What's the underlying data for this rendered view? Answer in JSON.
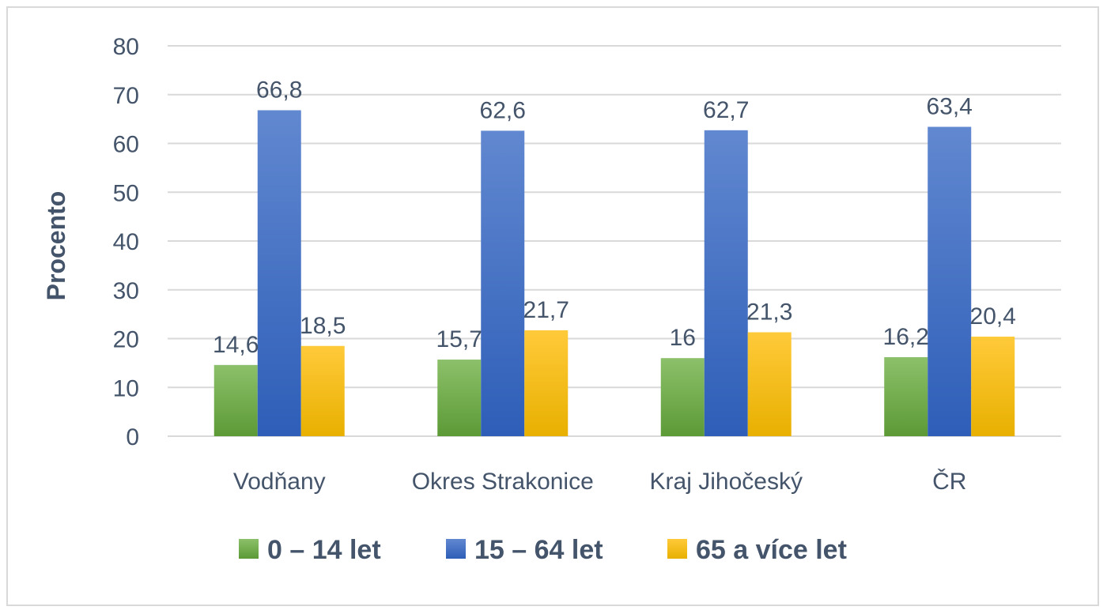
{
  "chart_data": {
    "type": "bar",
    "title": "",
    "xlabel": "",
    "ylabel": "Procento",
    "ylim": [
      0,
      80
    ],
    "yticks": [
      0,
      10,
      20,
      30,
      40,
      50,
      60,
      70,
      80
    ],
    "grid": true,
    "legend_position": "bottom",
    "categories": [
      "Vodňany",
      "Okres Strakonice",
      "Kraj Jihočeský",
      "ČR"
    ],
    "series": [
      {
        "name": "0 – 14 let",
        "color": "#70ad47",
        "values": [
          14.6,
          15.7,
          16,
          16.2
        ],
        "labels": [
          "14,6",
          "15,7",
          "16",
          "16,2"
        ]
      },
      {
        "name": "15 – 64 let",
        "color": "#4472c4",
        "values": [
          66.8,
          62.6,
          62.7,
          63.4
        ],
        "labels": [
          "66,8",
          "62,6",
          "62,7",
          "63,4"
        ]
      },
      {
        "name": "65 a více let",
        "color": "#ffc000",
        "values": [
          18.5,
          21.7,
          21.3,
          20.4
        ],
        "labels": [
          "18,5",
          "21,7",
          "21,3",
          "20,4"
        ]
      }
    ]
  }
}
